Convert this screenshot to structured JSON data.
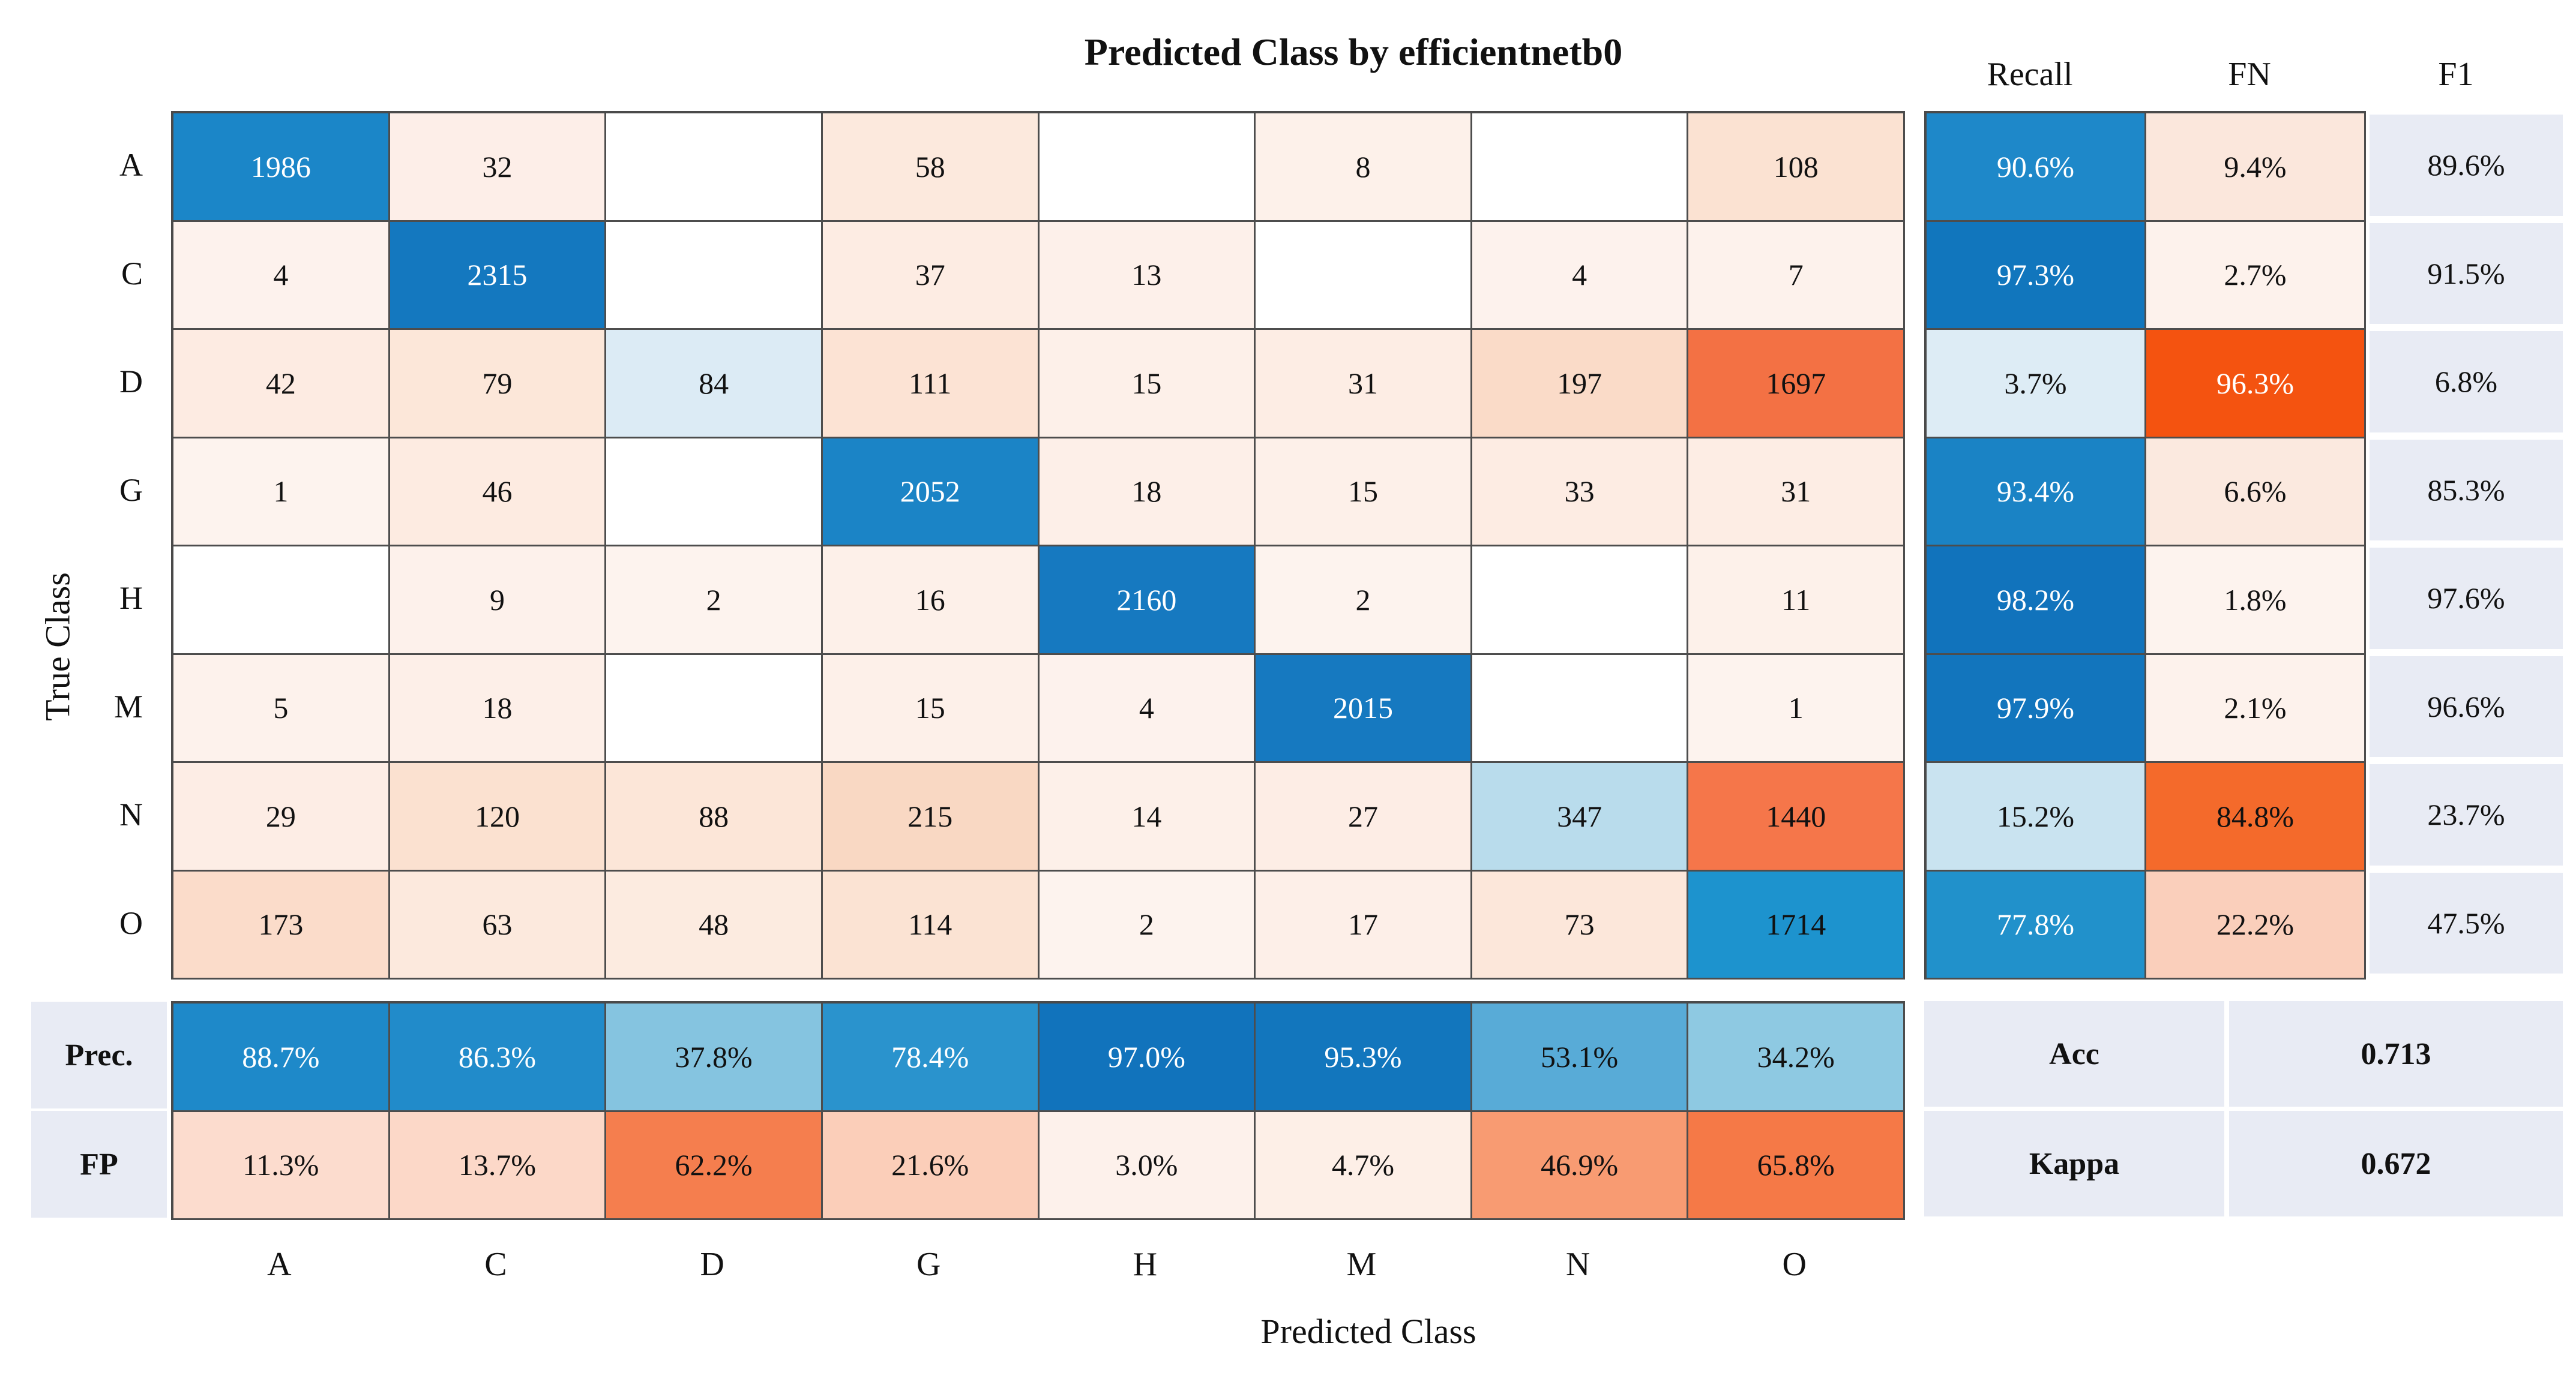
{
  "title": "Predicted Class by efficientnetb0",
  "axis": {
    "x_label": "Predicted Class",
    "y_label": "True Class"
  },
  "classes": [
    "A",
    "C",
    "D",
    "G",
    "H",
    "M",
    "N",
    "O"
  ],
  "right_headers": {
    "recall": "Recall",
    "fn": "FN",
    "f1": "F1"
  },
  "bottom_headers": {
    "prec": "Prec.",
    "fp": "FP"
  },
  "summary": {
    "acc_label": "Acc",
    "acc_value": "0.713",
    "kappa_label": "Kappa",
    "kappa_value": "0.672"
  },
  "colors": {
    "panel": "#e8ebf4",
    "grid_border": "#4d4d4d",
    "diag_blue": "#1b86c8",
    "error_orange": "#f45310"
  },
  "chart_data": {
    "type": "heatmap",
    "title": "Predicted Class by efficientnetb0",
    "xlabel": "Predicted Class",
    "ylabel": "True Class",
    "classes": [
      "A",
      "C",
      "D",
      "G",
      "H",
      "M",
      "N",
      "O"
    ],
    "matrix": [
      [
        1986,
        32,
        null,
        58,
        null,
        8,
        null,
        108
      ],
      [
        4,
        2315,
        null,
        37,
        13,
        null,
        4,
        7
      ],
      [
        42,
        79,
        84,
        111,
        15,
        31,
        197,
        1697
      ],
      [
        1,
        46,
        null,
        2052,
        18,
        15,
        33,
        31
      ],
      [
        null,
        9,
        2,
        16,
        2160,
        2,
        null,
        11
      ],
      [
        5,
        18,
        null,
        15,
        4,
        2015,
        null,
        1
      ],
      [
        29,
        120,
        88,
        215,
        14,
        27,
        347,
        1440
      ],
      [
        173,
        63,
        48,
        114,
        2,
        17,
        73,
        1714
      ]
    ],
    "recall_pct": [
      90.6,
      97.3,
      3.7,
      93.4,
      98.2,
      97.9,
      15.2,
      77.8
    ],
    "fn_pct": [
      9.4,
      2.7,
      96.3,
      6.6,
      1.8,
      2.1,
      84.8,
      22.2
    ],
    "f1_pct": [
      89.6,
      91.5,
      6.8,
      85.3,
      97.6,
      96.6,
      23.7,
      47.5
    ],
    "precision_pct": [
      88.7,
      86.3,
      37.8,
      78.4,
      97.0,
      95.3,
      53.1,
      34.2
    ],
    "fp_pct": [
      11.3,
      13.7,
      62.2,
      21.6,
      3.0,
      4.7,
      46.9,
      65.8
    ],
    "accuracy": 0.713,
    "kappa": 0.672,
    "legend_position": "none",
    "grid": true
  },
  "cells": {
    "matrix": [
      [
        [
          "1986",
          "#1b86c8",
          "#ffffff"
        ],
        [
          "32",
          "#fdeee8"
        ],
        [
          "",
          "#ffffff"
        ],
        [
          "58",
          "#fce9dd"
        ],
        [
          "",
          "#ffffff"
        ],
        [
          "8",
          "#fdf1ea"
        ],
        [
          "",
          "#ffffff"
        ],
        [
          "108",
          "#fbe2d2"
        ]
      ],
      [
        [
          "4",
          "#fdf2ed"
        ],
        [
          "2315",
          "#1478bf",
          "#ffffff"
        ],
        [
          "",
          "#ffffff"
        ],
        [
          "37",
          "#fdece3"
        ],
        [
          "13",
          "#fdf0ea"
        ],
        [
          "",
          "#ffffff"
        ],
        [
          "4",
          "#fdf2ed"
        ],
        [
          "7",
          "#fdf2ec"
        ]
      ],
      [
        [
          "42",
          "#fdebe2"
        ],
        [
          "79",
          "#fce7d9"
        ],
        [
          "84",
          "#dcebf5"
        ],
        [
          "111",
          "#fce3d4"
        ],
        [
          "15",
          "#fdf0e9"
        ],
        [
          "31",
          "#fdede4"
        ],
        [
          "197",
          "#fadbc8"
        ],
        [
          "1697",
          "#f37144"
        ]
      ],
      [
        [
          "1",
          "#fdf3ee"
        ],
        [
          "46",
          "#fdebe1"
        ],
        [
          "",
          "#ffffff"
        ],
        [
          "2052",
          "#1b84c6",
          "#ffffff"
        ],
        [
          "18",
          "#fdefe8"
        ],
        [
          "15",
          "#fdf0e9"
        ],
        [
          "33",
          "#fdece3"
        ],
        [
          "31",
          "#fdede4"
        ]
      ],
      [
        [
          "",
          "#ffffff"
        ],
        [
          "9",
          "#fdf1eb"
        ],
        [
          "2",
          "#fdf3ee"
        ],
        [
          "16",
          "#fdf0e9"
        ],
        [
          "2160",
          "#1679c0",
          "#ffffff"
        ],
        [
          "2",
          "#fdf3ee"
        ],
        [
          "",
          "#ffffff"
        ],
        [
          "11",
          "#fdf1ea"
        ]
      ],
      [
        [
          "5",
          "#fdf2ec"
        ],
        [
          "18",
          "#fdefe8"
        ],
        [
          "",
          "#ffffff"
        ],
        [
          "15",
          "#fdf0e9"
        ],
        [
          "4",
          "#fdf2ed"
        ],
        [
          "2015",
          "#1679c0",
          "#ffffff"
        ],
        [
          "",
          "#ffffff"
        ],
        [
          "1",
          "#fdf3ee"
        ]
      ],
      [
        [
          "29",
          "#fdede5"
        ],
        [
          "120",
          "#fbe1d0"
        ],
        [
          "88",
          "#fce6d8"
        ],
        [
          "215",
          "#f9d8c3"
        ],
        [
          "14",
          "#fdf0e9"
        ],
        [
          "27",
          "#fdede5"
        ],
        [
          "347",
          "#b9dcec"
        ],
        [
          "1440",
          "#f5764a"
        ]
      ],
      [
        [
          "173",
          "#fbdcca"
        ],
        [
          "63",
          "#fce9dd"
        ],
        [
          "48",
          "#fcebe0"
        ],
        [
          "114",
          "#fbe3d3"
        ],
        [
          "2",
          "#fdf3ee"
        ],
        [
          "17",
          "#fdefe8"
        ],
        [
          "73",
          "#fce7da"
        ],
        [
          "1714",
          "#1d93ce"
        ]
      ]
    ],
    "recall": [
      [
        "90.6%",
        "#1e88c9",
        "#ffffff"
      ],
      [
        "97.3%",
        "#1176bd",
        "#ffffff"
      ],
      [
        "3.7%",
        "#ddecf5"
      ],
      [
        "93.4%",
        "#1a83c5",
        "#ffffff"
      ],
      [
        "98.2%",
        "#1173bc",
        "#ffffff"
      ],
      [
        "97.9%",
        "#1275bd",
        "#ffffff"
      ],
      [
        "15.2%",
        "#c9e3f0"
      ],
      [
        "77.8%",
        "#2191cb",
        "#ffffff"
      ]
    ],
    "fn": [
      [
        "9.4%",
        "#fbe7dc"
      ],
      [
        "2.7%",
        "#fdf2ec"
      ],
      [
        "96.3%",
        "#f45310",
        "#ffffff"
      ],
      [
        "6.6%",
        "#fbe9df"
      ],
      [
        "1.8%",
        "#fdf3ee"
      ],
      [
        "2.1%",
        "#fdf2ec"
      ],
      [
        "84.8%",
        "#f46a2b"
      ],
      [
        "22.2%",
        "#facfbb"
      ]
    ],
    "f1": [
      [
        "89.6%",
        "#e8ebf4"
      ],
      [
        "91.5%",
        "#e8ebf4"
      ],
      [
        "6.8%",
        "#e8ebf4"
      ],
      [
        "85.3%",
        "#e8ebf4"
      ],
      [
        "97.6%",
        "#e8ebf4"
      ],
      [
        "96.6%",
        "#e8ebf4"
      ],
      [
        "23.7%",
        "#e8ebf4"
      ],
      [
        "47.5%",
        "#e8ebf4"
      ]
    ],
    "prec": [
      [
        "88.7%",
        "#1e89c9",
        "#ffffff"
      ],
      [
        "86.3%",
        "#218bca",
        "#ffffff"
      ],
      [
        "37.8%",
        "#85c4e0"
      ],
      [
        "78.4%",
        "#2a93cd",
        "#ffffff"
      ],
      [
        "97.0%",
        "#1173bc",
        "#ffffff"
      ],
      [
        "95.3%",
        "#1276bd",
        "#ffffff"
      ],
      [
        "53.1%",
        "#58abd7"
      ],
      [
        "34.2%",
        "#8ec9e2"
      ]
    ],
    "fp": [
      [
        "11.3%",
        "#fcdcce"
      ],
      [
        "13.7%",
        "#fcd8c8"
      ],
      [
        "62.2%",
        "#f57e4e"
      ],
      [
        "21.6%",
        "#fbceb9"
      ],
      [
        "3.0%",
        "#fdf1eb"
      ],
      [
        "4.7%",
        "#fdefe7"
      ],
      [
        "46.9%",
        "#f89b72"
      ],
      [
        "65.8%",
        "#f57947"
      ]
    ]
  }
}
